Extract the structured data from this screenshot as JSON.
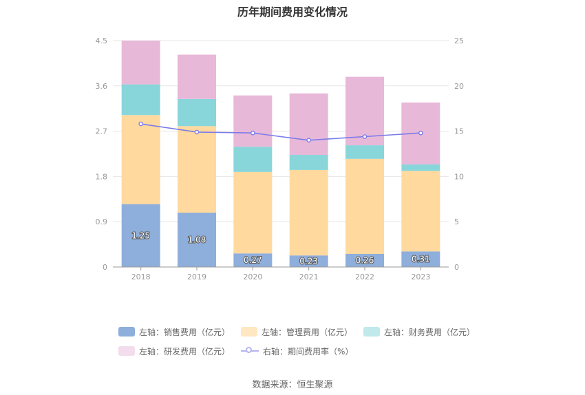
{
  "chart_data": {
    "type": "bar",
    "title": "历年期间费用变化情况",
    "categories": [
      "2018",
      "2019",
      "2020",
      "2021",
      "2022",
      "2023"
    ],
    "series": [
      {
        "name": "左轴：销售费用（亿元）",
        "type": "bar",
        "axis": "left",
        "color": "#8eaedb",
        "values": [
          1.25,
          1.08,
          0.27,
          0.23,
          0.26,
          0.31
        ],
        "labels": [
          "1.25",
          "1.08",
          "0.27",
          "0.23",
          "0.26",
          "0.31"
        ]
      },
      {
        "name": "左轴：管理费用（亿元）",
        "type": "bar",
        "axis": "left",
        "color": "#ffd99e",
        "values": [
          1.77,
          1.72,
          1.62,
          1.7,
          1.89,
          1.6
        ]
      },
      {
        "name": "左轴：财务费用（亿元）",
        "type": "bar",
        "axis": "left",
        "color": "#88d5da",
        "values": [
          0.61,
          0.54,
          0.5,
          0.3,
          0.27,
          0.13
        ]
      },
      {
        "name": "左轴：研发费用（亿元）",
        "type": "bar",
        "axis": "left",
        "color": "#e8b8d8",
        "values": [
          0.87,
          0.88,
          1.02,
          1.22,
          1.36,
          1.23
        ]
      },
      {
        "name": "右轴：期间费用率（%）",
        "type": "line",
        "axis": "right",
        "color": "#7b7bea",
        "values": [
          15.8,
          14.9,
          14.8,
          14.0,
          14.4,
          14.8
        ]
      }
    ],
    "left_axis": {
      "ylim": [
        0,
        4.5
      ],
      "ticks": [
        "0",
        "0.9",
        "1.8",
        "2.7",
        "3.6",
        "4.5"
      ]
    },
    "right_axis": {
      "ylim": [
        0,
        25
      ],
      "ticks": [
        "0",
        "5",
        "10",
        "15",
        "20",
        "25"
      ]
    },
    "grid": true,
    "legend_position": "bottom",
    "source": "数据来源：恒生聚源"
  }
}
